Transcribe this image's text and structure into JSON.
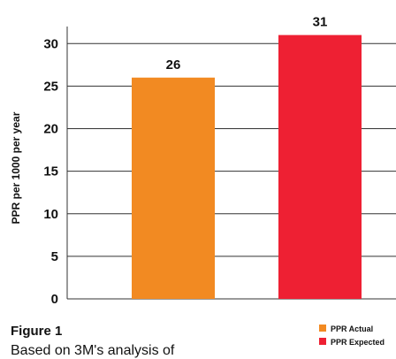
{
  "chart_data": {
    "type": "bar",
    "categories": [
      "PPR Actual",
      "PPR Expected"
    ],
    "values": [
      26,
      31
    ],
    "data_labels": [
      "26",
      "31"
    ],
    "colors": [
      "#f28a22",
      "#ee2033"
    ],
    "ylabel": "PPR per 1000 per year",
    "ylim": [
      0,
      32
    ],
    "yticks": [
      0,
      5,
      10,
      15,
      20,
      25,
      30
    ],
    "grid": true,
    "legend": {
      "placement": "bottom-right",
      "entries": [
        "PPR Actual",
        "PPR Expected"
      ]
    }
  },
  "caption": {
    "title": "Figure 1",
    "text": "Based on 3M's analysis of"
  }
}
